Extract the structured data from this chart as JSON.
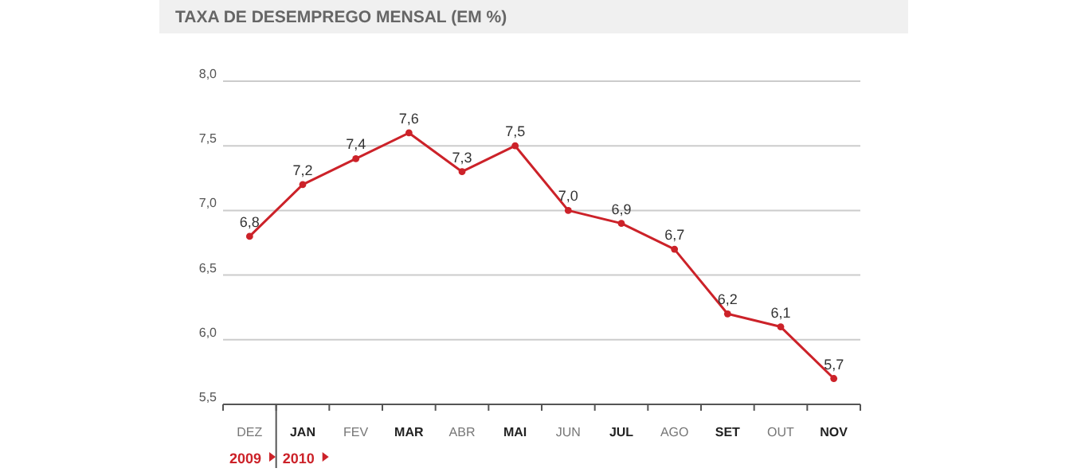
{
  "chart_data": {
    "type": "line",
    "title": "TAXA DE DESEMPREGO MENSAL (EM %)",
    "categories": [
      "DEZ",
      "JAN",
      "FEV",
      "MAR",
      "ABR",
      "MAI",
      "JUN",
      "JUL",
      "AGO",
      "SET",
      "OUT",
      "NOV"
    ],
    "series": [
      {
        "color": "#cc2229",
        "values": [
          6.8,
          7.2,
          7.4,
          7.6,
          7.3,
          7.5,
          7.0,
          6.9,
          6.7,
          6.2,
          6.1,
          5.7
        ],
        "value_labels": [
          "6,8",
          "7,2",
          "7,4",
          "7,6",
          "7,3",
          "7,5",
          "7,0",
          "6,9",
          "6,7",
          "6,2",
          "6,1",
          "5,7"
        ]
      }
    ],
    "ylim": [
      5.5,
      8.0
    ],
    "yticks": [
      {
        "value": 5.5,
        "label": "5,5"
      },
      {
        "value": 6.0,
        "label": "6,0"
      },
      {
        "value": 6.5,
        "label": "6,5"
      },
      {
        "value": 7.0,
        "label": "7,0"
      },
      {
        "value": 7.5,
        "label": "7,5"
      },
      {
        "value": 8.0,
        "label": "8,0"
      }
    ],
    "grid": "y",
    "marker": "circle",
    "annotations": [
      "2009",
      "2010"
    ]
  }
}
